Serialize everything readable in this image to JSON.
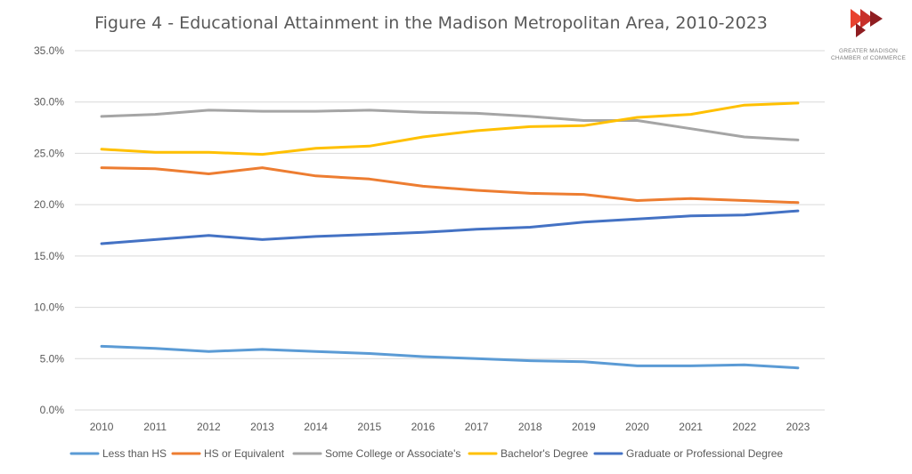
{
  "chart_data": {
    "type": "line",
    "title": "Figure 4 - Educational Attainment in the Madison Metropolitan Area, 2010-2023",
    "xlabel": "",
    "ylabel": "",
    "categories": [
      "2010",
      "2011",
      "2012",
      "2013",
      "2014",
      "2015",
      "2016",
      "2017",
      "2018",
      "2019",
      "2020",
      "2021",
      "2022",
      "2023"
    ],
    "ylim": [
      0,
      35
    ],
    "y_ticks": [
      0,
      5,
      10,
      15,
      20,
      25,
      30,
      35
    ],
    "y_tick_labels": [
      "0.0%",
      "5.0%",
      "10.0%",
      "15.0%",
      "20.0%",
      "25.0%",
      "30.0%",
      "35.0%"
    ],
    "grid": true,
    "legend_position": "bottom",
    "series": [
      {
        "name": "Less than HS",
        "color": "#5b9bd5",
        "values": [
          6.2,
          6.0,
          5.7,
          5.9,
          5.7,
          5.5,
          5.2,
          5.0,
          4.8,
          4.7,
          4.3,
          4.3,
          4.4,
          4.1
        ]
      },
      {
        "name": "HS or Equivalent",
        "color": "#ed7d31",
        "values": [
          23.6,
          23.5,
          23.0,
          23.6,
          22.8,
          22.5,
          21.8,
          21.4,
          21.1,
          21.0,
          20.4,
          20.6,
          20.4,
          20.2
        ]
      },
      {
        "name": "Some College or Associate's",
        "color": "#a5a5a5",
        "values": [
          28.6,
          28.8,
          29.2,
          29.1,
          29.1,
          29.2,
          29.0,
          28.9,
          28.6,
          28.2,
          28.2,
          27.4,
          26.6,
          26.3
        ]
      },
      {
        "name": "Bachelor's Degree",
        "color": "#ffc000",
        "values": [
          25.4,
          25.1,
          25.1,
          24.9,
          25.5,
          25.7,
          26.6,
          27.2,
          27.6,
          27.7,
          28.5,
          28.8,
          29.7,
          29.9
        ]
      },
      {
        "name": "Graduate or Professional Degree",
        "color": "#4472c4",
        "values": [
          16.2,
          16.6,
          17.0,
          16.6,
          16.9,
          17.1,
          17.3,
          17.6,
          17.8,
          18.3,
          18.6,
          18.9,
          19.0,
          19.4
        ]
      }
    ]
  },
  "logo": {
    "line1": "GREATER MADISON",
    "line2": "CHAMBER of COMMERCE",
    "colors": [
      "#e8422f",
      "#8f1d21"
    ]
  }
}
